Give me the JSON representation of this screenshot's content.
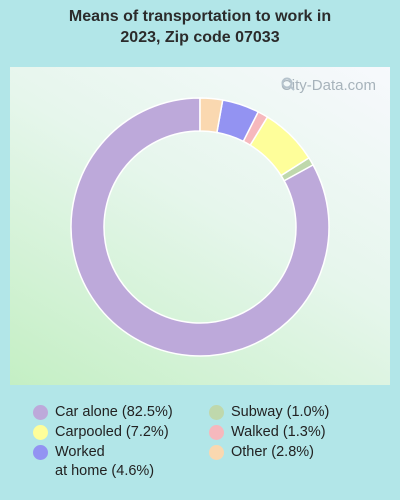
{
  "title_lines": [
    "Means of transportation to work in",
    "2023, Zip code 07033"
  ],
  "watermark": "City-Data.com",
  "chart_data": {
    "type": "pie",
    "donut": true,
    "title": "Means of transportation to work in 2023, Zip code 07033",
    "legend_position": "bottom",
    "slices": [
      {
        "label": "Car alone",
        "value": 82.5,
        "color": "#bda9da"
      },
      {
        "label": "Subway",
        "value": 1.0,
        "color": "#bfd8ac"
      },
      {
        "label": "Carpooled",
        "value": 7.2,
        "color": "#fefe9a"
      },
      {
        "label": "Walked",
        "value": 1.3,
        "color": "#f6b8bd"
      },
      {
        "label": "Worked at home",
        "value": 4.6,
        "color": "#9393f2"
      },
      {
        "label": "Other",
        "value": 2.8,
        "color": "#fad8b0"
      }
    ]
  },
  "legend": [
    {
      "text": "Car alone (82.5%)",
      "color": "#bda9da"
    },
    {
      "text": "Subway (1.0%)",
      "color": "#bfd8ac"
    },
    {
      "text": "Carpooled (7.2%)",
      "color": "#fefe9a"
    },
    {
      "text": "Walked (1.3%)",
      "color": "#f6b8bd"
    },
    {
      "text": "Worked\nat home (4.6%)",
      "color": "#9393f2"
    },
    {
      "text": "Other (2.8%)",
      "color": "#fad8b0"
    }
  ]
}
